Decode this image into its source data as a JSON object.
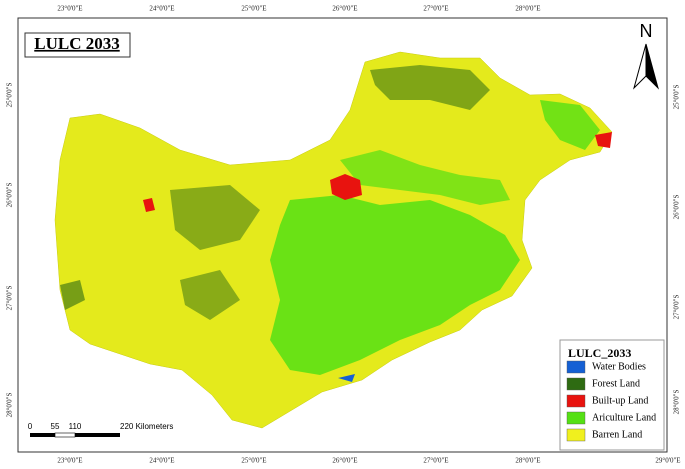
{
  "title": "LULC 2033",
  "north": "N",
  "top_labels": [
    "23°0'0\"E",
    "24°0'0\"E",
    "25°0'0\"E",
    "26°0'0\"E",
    "27°0'0\"E",
    "28°0'0\"E"
  ],
  "bottom_labels": [
    "23°0'0\"E",
    "24°0'0\"E",
    "25°0'0\"E",
    "26°0'0\"E",
    "27°0'0\"E",
    "28°0'0\"E",
    "29°0'0\"E"
  ],
  "left_labels": [
    "25°0'0\"S",
    "26°0'0\"S",
    "27°0'0\"S",
    "28°0'0\"S"
  ],
  "right_labels": [
    "25°0'0\"S",
    "26°0'0\"S",
    "27°0'0\"S",
    "28°0'0\"S"
  ],
  "legend": {
    "title": "LULC_2033",
    "items": [
      {
        "label": "Water Bodies",
        "color": "#1560d4"
      },
      {
        "label": "Forest Land",
        "color": "#2e6b12"
      },
      {
        "label": "Built-up Land",
        "color": "#e8130f"
      },
      {
        "label": "Ariculture Land",
        "color": "#55e014"
      },
      {
        "label": "Barren Land",
        "color": "#f0f01e"
      }
    ]
  },
  "scale_bar": [
    "0",
    "55",
    "110",
    "220 Kilometers"
  ]
}
